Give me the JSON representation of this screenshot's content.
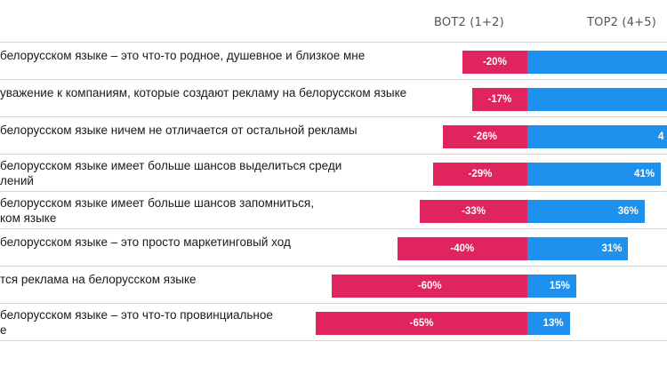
{
  "chart_data": {
    "type": "bar",
    "orientation": "horizontal-diverging",
    "columns": {
      "bot": "BOT2 (1+2)",
      "top": "TOP2 (4+5)"
    },
    "categories": [
      "белорусском языке – это что-то родное, душевное и близкое мне",
      "уважение к компаниям, которые создают рекламу на белорусском языке",
      "белорусском языке ничем не отличается от остальной рекламы",
      "белорусском языке имеет больше шансов выделиться среди\nлений",
      "белорусском языке имеет больше шансов запомниться,\nком языке",
      "белорусском языке – это просто маркетинговый ход",
      "тся реклама на белорусском языке",
      "белорусском языке – это что-то провинциальное\nе"
    ],
    "bot_values": [
      -20,
      -17,
      -26,
      -29,
      -33,
      -40,
      -60,
      -65
    ],
    "bot_labels": [
      "-20%",
      "-17%",
      "-26%",
      "-29%",
      "-33%",
      "-40%",
      "-60%",
      "-65%"
    ],
    "top_values": [
      null,
      null,
      null,
      41,
      36,
      31,
      15,
      13
    ],
    "top_labels": [
      "",
      "",
      "4",
      "41%",
      "36%",
      "31%",
      "15%",
      "13%"
    ],
    "colors": {
      "bot": "#e0245e",
      "top": "#1e90ee"
    }
  }
}
